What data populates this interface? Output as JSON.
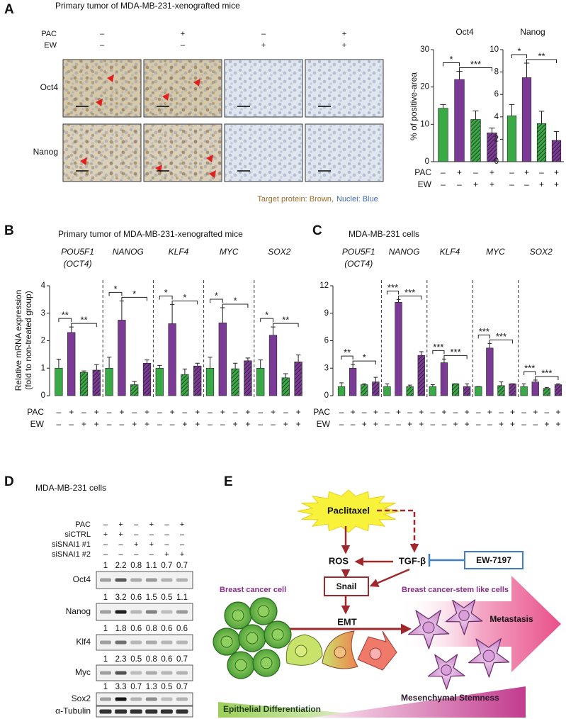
{
  "panel_labels": [
    "A",
    "B",
    "C",
    "D",
    "E"
  ],
  "ihc": {
    "title": "Primary tumor of MDA-MB-231-xenografted mice",
    "conditions": [
      {
        "label": "PAC",
        "signs": [
          "–",
          "+",
          "–",
          "+"
        ]
      },
      {
        "label": "EW",
        "signs": [
          "–",
          "–",
          "+",
          "+"
        ]
      }
    ],
    "rows": [
      "Oct4",
      "Nanog"
    ],
    "caption": [
      "Target protein: Brown,",
      "Nuclei: Blue"
    ]
  },
  "chart_data": [
    {
      "type": "bar",
      "title": "Oct4",
      "ylabel": "% of positive-area",
      "ylim": [
        0,
        30
      ],
      "yticks": [
        0,
        10,
        20,
        30
      ],
      "values": [
        14.3,
        22,
        11.3,
        7.7
      ],
      "errors": [
        1,
        2.2,
        2.3,
        1.3
      ],
      "significance": [
        "*",
        "***"
      ],
      "colors": [
        "#3aaa46",
        "#7b3a96",
        "#3aaa46",
        "#7b3a96"
      ],
      "hatched": [
        false,
        false,
        true,
        true
      ],
      "condition_rows": [
        {
          "label": "PAC",
          "signs": [
            "–",
            "+",
            "–",
            "+"
          ]
        },
        {
          "label": "EW",
          "signs": [
            "–",
            "–",
            "+",
            "+"
          ]
        }
      ]
    },
    {
      "type": "bar",
      "title": "Nanog",
      "ylim": [
        0,
        10
      ],
      "yticks": [
        0,
        2,
        4,
        6,
        8,
        10
      ],
      "values": [
        4.1,
        7.5,
        3.4,
        1.9
      ],
      "errors": [
        1,
        1.3,
        1.1,
        0.8
      ],
      "significance": [
        "*",
        "**"
      ],
      "colors": [
        "#3aaa46",
        "#7b3a96",
        "#3aaa46",
        "#7b3a96"
      ],
      "hatched": [
        false,
        false,
        true,
        true
      ],
      "condition_rows": [
        {
          "signs": [
            "–",
            "+",
            "–",
            "+"
          ]
        },
        {
          "signs": [
            "–",
            "–",
            "+",
            "+"
          ]
        }
      ]
    },
    {
      "type": "grouped_bar",
      "title": "Primary tumor of MDA-MB-231-xenografted mice",
      "ylabel": [
        "Relative mRNA expression",
        "(fold to non-treated group)"
      ],
      "ylim": [
        0,
        4
      ],
      "yticks": [
        0,
        1,
        2,
        3,
        4
      ],
      "colors": [
        "#3aaa46",
        "#7b3a96",
        "#3aaa46",
        "#7b3a96"
      ],
      "hatched": [
        false,
        false,
        true,
        true
      ],
      "groups": [
        {
          "gene": "POU5F1",
          "note": "(OCT4)",
          "values": [
            1,
            2.3,
            0.85,
            0.93
          ],
          "errors": [
            0.33,
            0.2,
            0.05,
            0.2
          ],
          "significance": [
            "**",
            "**"
          ]
        },
        {
          "gene": "NANOG",
          "values": [
            1,
            2.75,
            0.4,
            1.18
          ],
          "errors": [
            0.4,
            0.7,
            0.12,
            0.12
          ],
          "significance": [
            "*",
            "*"
          ]
        },
        {
          "gene": "KLF4",
          "values": [
            1,
            2.62,
            0.77,
            1.08
          ],
          "errors": [
            0.1,
            0.7,
            0.2,
            0.1
          ],
          "significance": [
            "*",
            "*"
          ]
        },
        {
          "gene": "MYC",
          "values": [
            1,
            2.65,
            0.98,
            1.27
          ],
          "errors": [
            0.4,
            0.55,
            0.2,
            0.1
          ],
          "significance": [
            "*",
            "*"
          ]
        },
        {
          "gene": "SOX2",
          "values": [
            1,
            2.2,
            0.65,
            1.23
          ],
          "errors": [
            0.3,
            0.3,
            0.15,
            0.25
          ],
          "significance": [
            "*",
            "**"
          ]
        }
      ],
      "condition_rows": [
        {
          "label": "PAC",
          "signs": [
            "–",
            "+",
            "–",
            "+"
          ]
        },
        {
          "label": "EW",
          "signs": [
            "–",
            "–",
            "+",
            "+"
          ]
        }
      ]
    },
    {
      "type": "grouped_bar",
      "title": "MDA-MB-231 cells",
      "ylim": [
        0,
        12
      ],
      "yticks": [
        0,
        3,
        6,
        9,
        12
      ],
      "colors": [
        "#3aaa46",
        "#7b3a96",
        "#3aaa46",
        "#7b3a96"
      ],
      "hatched": [
        false,
        false,
        true,
        true
      ],
      "groups": [
        {
          "gene": "POU5F1",
          "note": "(OCT4)",
          "values": [
            1,
            3,
            1.2,
            1.5
          ],
          "errors": [
            0.4,
            0.4,
            0.1,
            0.5
          ],
          "significance": [
            "**",
            "*"
          ]
        },
        {
          "gene": "NANOG",
          "values": [
            1,
            10.2,
            1,
            4.4
          ],
          "errors": [
            0.3,
            0.3,
            0.15,
            0.4
          ],
          "significance": [
            "***",
            "***"
          ]
        },
        {
          "gene": "KLF4",
          "values": [
            1,
            3.6,
            1.3,
            1
          ],
          "errors": [
            0.2,
            0.4,
            0,
            0.3
          ],
          "significance": [
            "***",
            "***"
          ]
        },
        {
          "gene": "MYC",
          "values": [
            1,
            5.2,
            1.1,
            1.3
          ],
          "errors": [
            0,
            0.5,
            0.4,
            0
          ],
          "significance": [
            "***",
            "***"
          ]
        },
        {
          "gene": "SOX2",
          "values": [
            1,
            1.5,
            0.8,
            1.2
          ],
          "errors": [
            0.3,
            0.2,
            0.1,
            0.1
          ],
          "significance": [
            "***",
            "***"
          ]
        }
      ],
      "condition_rows": [
        {
          "label": "PAC",
          "signs": [
            "–",
            "+",
            "–",
            "+"
          ]
        },
        {
          "label": "EW",
          "signs": [
            "–",
            "–",
            "+",
            "+"
          ]
        }
      ]
    }
  ],
  "blot": {
    "title": "MDA-MB-231 cells",
    "conditions": [
      {
        "label": "PAC",
        "signs": [
          "–",
          "+",
          "–",
          "+",
          "–",
          "+"
        ]
      },
      {
        "label": "siCTRL",
        "signs": [
          "+",
          "+",
          "–",
          "–",
          "–",
          "–"
        ]
      },
      {
        "label": "siSNAI1 #1",
        "signs": [
          "–",
          "–",
          "+",
          "+",
          "–",
          "–"
        ]
      },
      {
        "label": "siSNAI1 #2",
        "signs": [
          "–",
          "–",
          "–",
          "–",
          "+",
          "+"
        ]
      }
    ],
    "proteins": [
      {
        "name": "Oct4",
        "quant": [
          1,
          2.2,
          0.8,
          1.1,
          0.7,
          0.7
        ]
      },
      {
        "name": "Nanog",
        "quant": [
          1,
          3.2,
          0.6,
          1.5,
          0.5,
          1.1
        ]
      },
      {
        "name": "Klf4",
        "quant": [
          1,
          1.8,
          0.6,
          0.8,
          0.6,
          0.6
        ]
      },
      {
        "name": "Myc",
        "quant": [
          1,
          2.3,
          0.5,
          0.8,
          0.6,
          0.7
        ]
      },
      {
        "name": "Sox2",
        "quant": [
          1,
          3.3,
          0.7,
          1.3,
          0.5,
          0.7
        ]
      },
      {
        "name": "α-Tubulin"
      }
    ]
  },
  "scheme": {
    "drug": "Paclitaxel",
    "ros": "ROS",
    "tgfb": "TGF-β",
    "inhibitor": "EW-7197",
    "snail": "Snail",
    "emt": "EMT",
    "cell_left": "Breast cancer cell",
    "cell_right": "Breast cancer-stem like cells",
    "metastasis": "Metastasis",
    "gradient_right": "Mesenchymal Stemness",
    "gradient_left": "Epithelial Differentiation"
  }
}
